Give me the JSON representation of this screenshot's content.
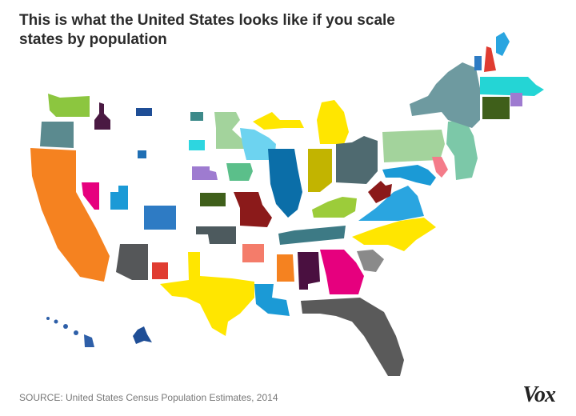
{
  "header": {
    "title": "This is what the United States looks like if you scale states by population"
  },
  "footer": {
    "source": "SOURCE: United States Census Population Estimates, 2014",
    "logo": "Vox"
  }
}
